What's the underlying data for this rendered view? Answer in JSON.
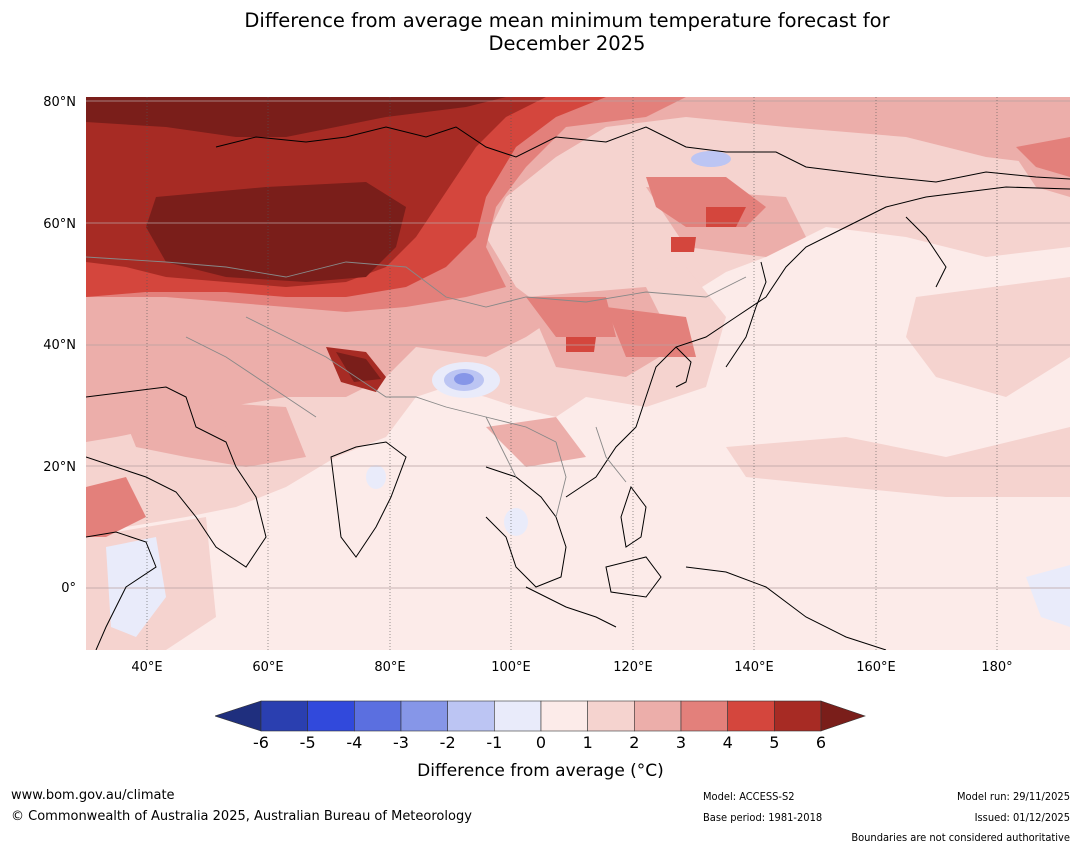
{
  "title": {
    "line1": "Difference from average mean minimum temperature forecast for",
    "line2": "December 2025"
  },
  "map": {
    "lat_labels": [
      "80°N",
      "60°N",
      "40°N",
      "20°N",
      "0°"
    ],
    "lon_labels": [
      "40°E",
      "60°E",
      "80°E",
      "100°E",
      "120°E",
      "140°E",
      "160°E",
      "180°"
    ],
    "lat_range": [
      -10,
      80
    ],
    "lon_range": [
      30,
      192
    ]
  },
  "colorbar": {
    "ticks": [
      "-6",
      "-5",
      "-4",
      "-3",
      "-2",
      "-1",
      "0",
      "1",
      "2",
      "3",
      "4",
      "5",
      "6"
    ],
    "colors": [
      "#1f2f7e",
      "#2a3fb0",
      "#3149dc",
      "#5b6fe0",
      "#8696e8",
      "#bcc5f3",
      "#e9ebfa",
      "#fcebe9",
      "#f5d3cf",
      "#ecaeaa",
      "#e3807b",
      "#d4463d",
      "#a72b24",
      "#7a1e1a"
    ],
    "label": "Difference from average (°C)"
  },
  "footer": {
    "url": "www.bom.gov.au/climate",
    "copyright": "© Commonwealth of Australia 2025, Australian Bureau of Meteorology",
    "model": "Model: ACCESS-S2",
    "base_period": "Base period: 1981-2018",
    "model_run": "Model run: 29/11/2025",
    "issued": "Issued: 01/12/2025",
    "disclaimer": "Boundaries are not considered authoritative"
  }
}
